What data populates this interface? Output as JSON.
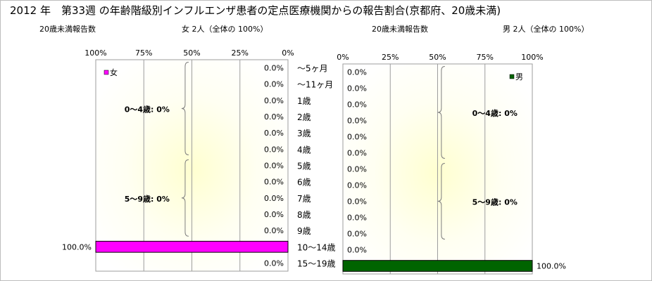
{
  "title": "2012 年　第33週 の年齢階級別インフルエンザ患者の定点医療機関からの報告割合(京都府、20歳未満)",
  "colors": {
    "female": "#ff00ff",
    "male": "#006400",
    "plot_bg": "#ffffd0",
    "grid": "#9e9e9e"
  },
  "chart_data": {
    "type": "bar",
    "categories": [
      "～5ヶ月",
      "～11ヶ月",
      "1歳",
      "2歳",
      "3歳",
      "4歳",
      "5歳",
      "6歳",
      "7歳",
      "8歳",
      "9歳",
      "10～14歳",
      "15～19歳"
    ],
    "female": {
      "header_left": "20歳未満報告数",
      "header_right": "女 2人（全体の 100%）",
      "legend": "女",
      "ticks": [
        "100%",
        "75%",
        "50%",
        "25%",
        "0%"
      ],
      "values": [
        0,
        0,
        0,
        0,
        0,
        0,
        0,
        0,
        0,
        0,
        0,
        100,
        0
      ],
      "value_labels": [
        "0.0%",
        "0.0%",
        "0.0%",
        "0.0%",
        "0.0%",
        "0.0%",
        "0.0%",
        "0.0%",
        "0.0%",
        "0.0%",
        "0.0%",
        "100.0%",
        "0.0%"
      ],
      "group_labels": [
        "0～4歳:  0%",
        "5～9歳:  0%"
      ],
      "xlim": [
        0,
        100
      ]
    },
    "male": {
      "header_left": "20歳未満報告数",
      "header_right": "男 2人（全体の 100%）",
      "legend": "男",
      "ticks": [
        "0%",
        "25%",
        "50%",
        "75%",
        "100%"
      ],
      "values": [
        0,
        0,
        0,
        0,
        0,
        0,
        0,
        0,
        0,
        0,
        0,
        0,
        100
      ],
      "value_labels": [
        "0.0%",
        "0.0%",
        "0.0%",
        "0.0%",
        "0.0%",
        "0.0%",
        "0.0%",
        "0.0%",
        "0.0%",
        "0.0%",
        "0.0%",
        "0.0%",
        "100.0%"
      ],
      "group_labels": [
        "0～4歳:  0%",
        "5～9歳:  0%"
      ],
      "xlim": [
        0,
        100
      ]
    }
  }
}
